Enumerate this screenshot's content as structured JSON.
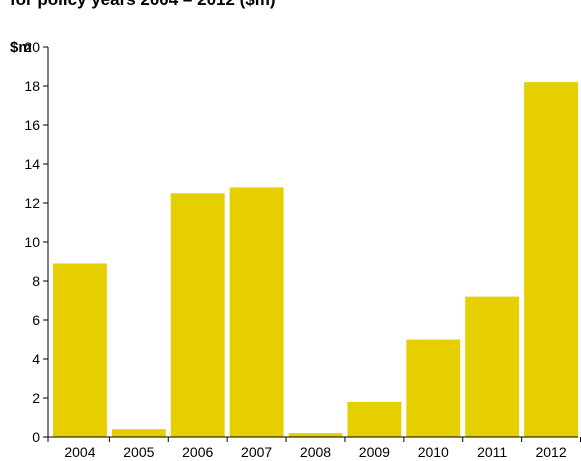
{
  "chart_data": {
    "type": "bar",
    "title": "for policy years 2004 – 2012 ($m)",
    "ylabel": "$m",
    "xlabel": "",
    "categories": [
      "2004",
      "2005",
      "2006",
      "2007",
      "2008",
      "2009",
      "2010",
      "2011",
      "2012"
    ],
    "values": [
      8.9,
      0.4,
      12.5,
      12.8,
      0.2,
      1.8,
      5.0,
      7.2,
      18.2
    ],
    "ylim": [
      0,
      20
    ],
    "yticks": [
      0,
      2,
      4,
      6,
      8,
      10,
      12,
      14,
      16,
      18,
      20
    ],
    "grid": false,
    "bar_color": "#e6cf00"
  }
}
